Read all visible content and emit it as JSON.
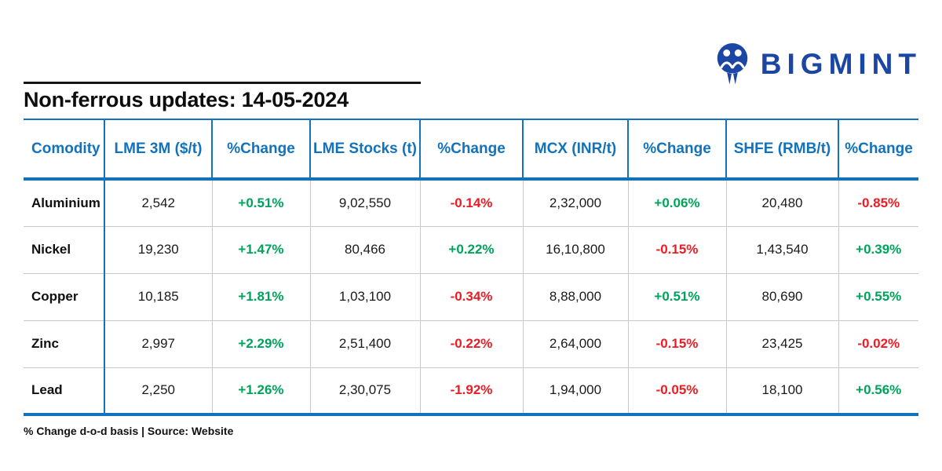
{
  "logo": {
    "text": "BIGMINT",
    "icon": "bigmint-two-people-icon"
  },
  "title": "Non-ferrous updates: 14-05-2024",
  "footnote": "% Change d-o-d basis | Source: Website",
  "colors": {
    "header_blue": "#1272BC",
    "positive_green": "#00A35B",
    "negative_red": "#EC1C24",
    "logo_navy": "#1C46A3"
  },
  "table": {
    "columns": [
      "Comodity",
      "LME 3M ($/t)",
      "%Change",
      "LME Stocks (t)",
      "%Change",
      "MCX (INR/t)",
      "%Change",
      "SHFE (RMB/t)",
      "%Change"
    ],
    "rows": [
      [
        "Aluminium",
        "2,542",
        "+0.51%",
        "9,02,550",
        "-0.14%",
        "2,32,000",
        "+0.06%",
        "20,480",
        "-0.85%"
      ],
      [
        "Nickel",
        "19,230",
        "+1.47%",
        "80,466",
        "+0.22%",
        "16,10,800",
        "-0.15%",
        "1,43,540",
        "+0.39%"
      ],
      [
        "Copper",
        "10,185",
        "+1.81%",
        "1,03,100",
        "-0.34%",
        "8,88,000",
        "+0.51%",
        "80,690",
        "+0.55%"
      ],
      [
        "Zinc",
        "2,997",
        "+2.29%",
        "2,51,400",
        "-0.22%",
        "2,64,000",
        "-0.15%",
        "23,425",
        "-0.02%"
      ],
      [
        "Lead",
        "2,250",
        "+1.26%",
        "2,30,075",
        "-1.92%",
        "1,94,000",
        "-0.05%",
        "18,100",
        "+0.56%"
      ]
    ]
  },
  "chart_data": {
    "type": "table",
    "title": "Non-ferrous updates: 14-05-2024",
    "columns": [
      "Comodity",
      "LME 3M ($/t)",
      "%Change",
      "LME Stocks (t)",
      "%Change",
      "MCX (INR/t)",
      "%Change",
      "SHFE (RMB/t)",
      "%Change"
    ],
    "rows": [
      [
        "Aluminium",
        "2,542",
        "+0.51%",
        "9,02,550",
        "-0.14%",
        "2,32,000",
        "+0.06%",
        "20,480",
        "-0.85%"
      ],
      [
        "Nickel",
        "19,230",
        "+1.47%",
        "80,466",
        "+0.22%",
        "16,10,800",
        "-0.15%",
        "1,43,540",
        "+0.39%"
      ],
      [
        "Copper",
        "10,185",
        "+1.81%",
        "1,03,100",
        "-0.34%",
        "8,88,000",
        "+0.51%",
        "80,690",
        "+0.55%"
      ],
      [
        "Zinc",
        "2,997",
        "+2.29%",
        "2,51,400",
        "-0.22%",
        "2,64,000",
        "-0.15%",
        "23,425",
        "-0.02%"
      ],
      [
        "Lead",
        "2,250",
        "+1.26%",
        "2,30,075",
        "-1.92%",
        "1,94,000",
        "-0.05%",
        "18,100",
        "+0.56%"
      ]
    ],
    "note": "% Change d-o-d basis",
    "source": "Website",
    "positive_color": "#00A35B",
    "negative_color": "#EC1C24"
  }
}
